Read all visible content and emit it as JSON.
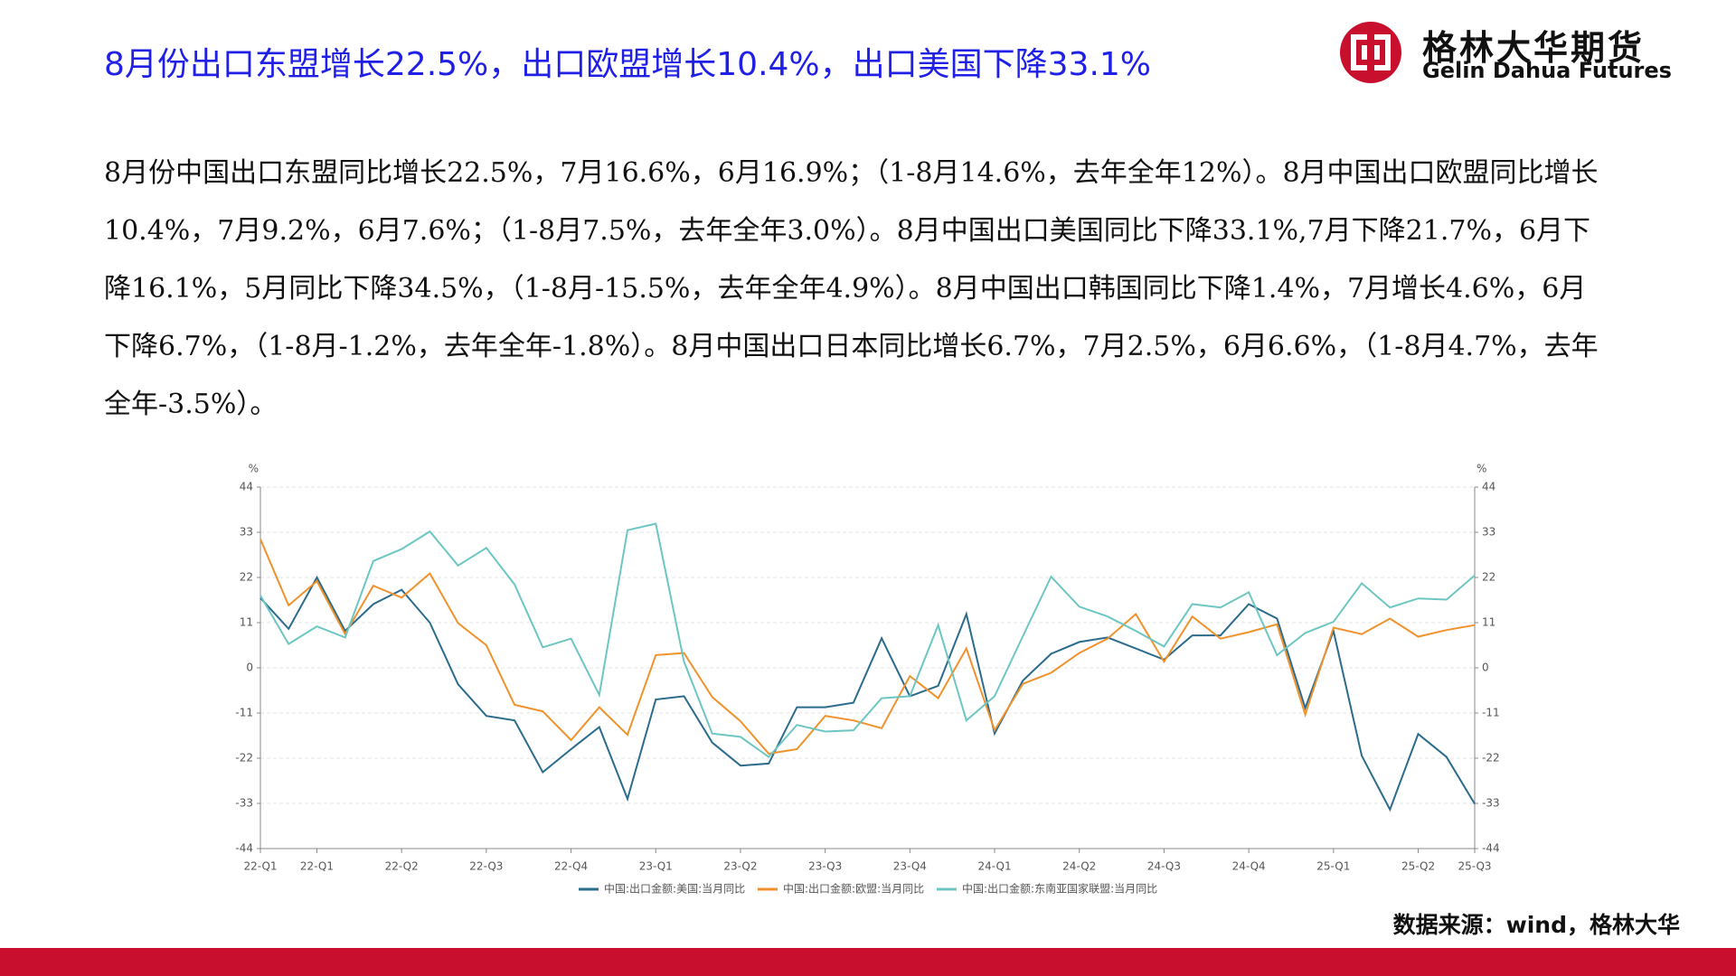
{
  "page": {
    "title": "8月份出口东盟增长22.5%，出口欧盟增长10.4%，出口美国下降33.1%",
    "logo_cn": "格林大华期货",
    "logo_en": "Gelin Dahua Futures",
    "body": "8月份中国出口东盟同比增长22.5%，7月16.6%，6月16.9%；（1-8月14.6%，去年全年12%）。8月中国出口欧盟同比增长10.4%，7月9.2%，6月7.6%；（1-8月7.5%，去年全年3.0%）。8月中国出口美国同比下降33.1%,7月下降21.7%，6月下降16.1%，5月同比下降34.5%，（1-8月-15.5%，去年全年4.9%）。8月中国出口韩国同比下降1.4%，7月增长4.6%，6月下降6.7%，（1-8月-1.2%，去年全年-1.8%）。8月中国出口日本同比增长6.7%，7月2.5%，6月6.6%，（1-8月4.7%，去年全年-3.5%）。",
    "source": "数据来源：wind，格林大华"
  },
  "chart_data": {
    "type": "line",
    "ylabel": "%",
    "y2label": "%",
    "categories": [
      "22-Q1",
      null,
      "22-Q1",
      null,
      null,
      "22-Q2",
      null,
      null,
      "22-Q3",
      null,
      null,
      "22-Q4",
      null,
      null,
      "23-Q1",
      null,
      null,
      "23-Q2",
      null,
      null,
      "23-Q3",
      null,
      null,
      "23-Q4",
      null,
      null,
      "24-Q1",
      null,
      null,
      "24-Q2",
      null,
      null,
      "24-Q3",
      null,
      null,
      "24-Q4",
      null,
      null,
      "25-Q1",
      null,
      null,
      "25-Q2",
      null,
      "25-Q3"
    ],
    "series": [
      {
        "name": "中国:出口金额:美国:当月同比",
        "color": "#2b6b8c",
        "values": [
          17,
          9.5,
          22,
          9,
          15.5,
          19,
          11,
          -4,
          -11.7,
          -12.8,
          -25.4,
          -19.8,
          -14.4,
          -31.9,
          -7.7,
          -6.9,
          -18.2,
          -23.8,
          -23.3,
          -9.6,
          -9.6,
          -8.5,
          7.2,
          -6.9,
          -4.4,
          13.1,
          -16,
          -3.1,
          3.4,
          6.3,
          7.4,
          4.7,
          2.0,
          7.9,
          7.9,
          15.5,
          12,
          -9.8,
          9.0,
          -21.4,
          -34.5,
          -16.1,
          -21.7,
          -33.1
        ]
      },
      {
        "name": "中国:出口金额:欧盟:当月同比",
        "color": "#f0922b",
        "values": [
          31.3,
          15.2,
          21.1,
          8.2,
          20,
          17.1,
          23,
          10.9,
          5.5,
          -9,
          -10.6,
          -17.6,
          -9.6,
          -16.3,
          3.1,
          3.6,
          -7.1,
          -13,
          -20.9,
          -19.8,
          -11.7,
          -12.8,
          -14.7,
          -2,
          -7.4,
          4.7,
          -15.2,
          -3.9,
          -1.2,
          3.6,
          7.1,
          13.1,
          1.5,
          12.5,
          7.1,
          8.7,
          10.6,
          -11.4,
          9.8,
          8.2,
          12,
          7.6,
          9.2,
          10.4
        ]
      },
      {
        "name": "中国:出口金额:东南亚国家联盟:当月同比",
        "color": "#6cc6c1",
        "values": [
          17.6,
          5.8,
          10.1,
          7.4,
          26,
          28.9,
          33.2,
          24.9,
          29.2,
          20.3,
          5,
          7.1,
          -6.6,
          33.5,
          35.1,
          1.5,
          -16,
          -16.8,
          -21.7,
          -13.9,
          -15.5,
          -15.2,
          -7.4,
          -6.9,
          10.4,
          -12.8,
          -6.9,
          7.7,
          22.2,
          14.9,
          12.5,
          9.0,
          5.2,
          15.5,
          14.7,
          18.4,
          3.1,
          8.5,
          11.2,
          20.6,
          14.7,
          16.9,
          16.6,
          22.5
        ]
      }
    ],
    "ylim": [
      -44,
      44
    ],
    "yticks": [
      -44,
      -33,
      -22,
      -11,
      0,
      11,
      22,
      33,
      44
    ],
    "y2lim": [
      -44,
      44
    ],
    "y2ticks": [
      -44,
      -33,
      -22,
      -11,
      0,
      11,
      22,
      33,
      44
    ],
    "grid": true
  }
}
